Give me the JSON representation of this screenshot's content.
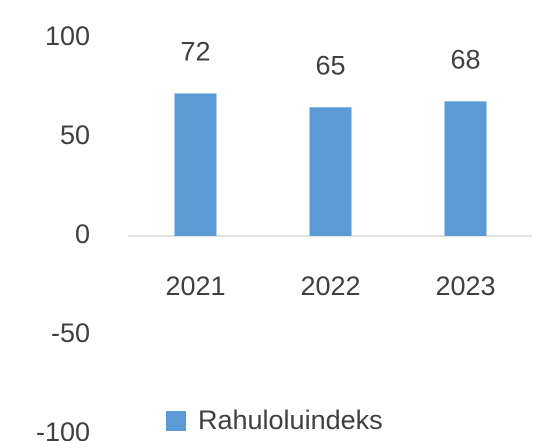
{
  "chart_data": {
    "type": "bar",
    "categories": [
      "2021",
      "2022",
      "2023"
    ],
    "series": [
      {
        "name": "Rahuloluindeks",
        "color": "#5b9bd5",
        "values": [
          72,
          65,
          68
        ]
      }
    ],
    "ylim": [
      -100,
      100
    ],
    "yticks": [
      -100,
      -50,
      0,
      50,
      100
    ],
    "grid": false,
    "legend": "bottom"
  }
}
